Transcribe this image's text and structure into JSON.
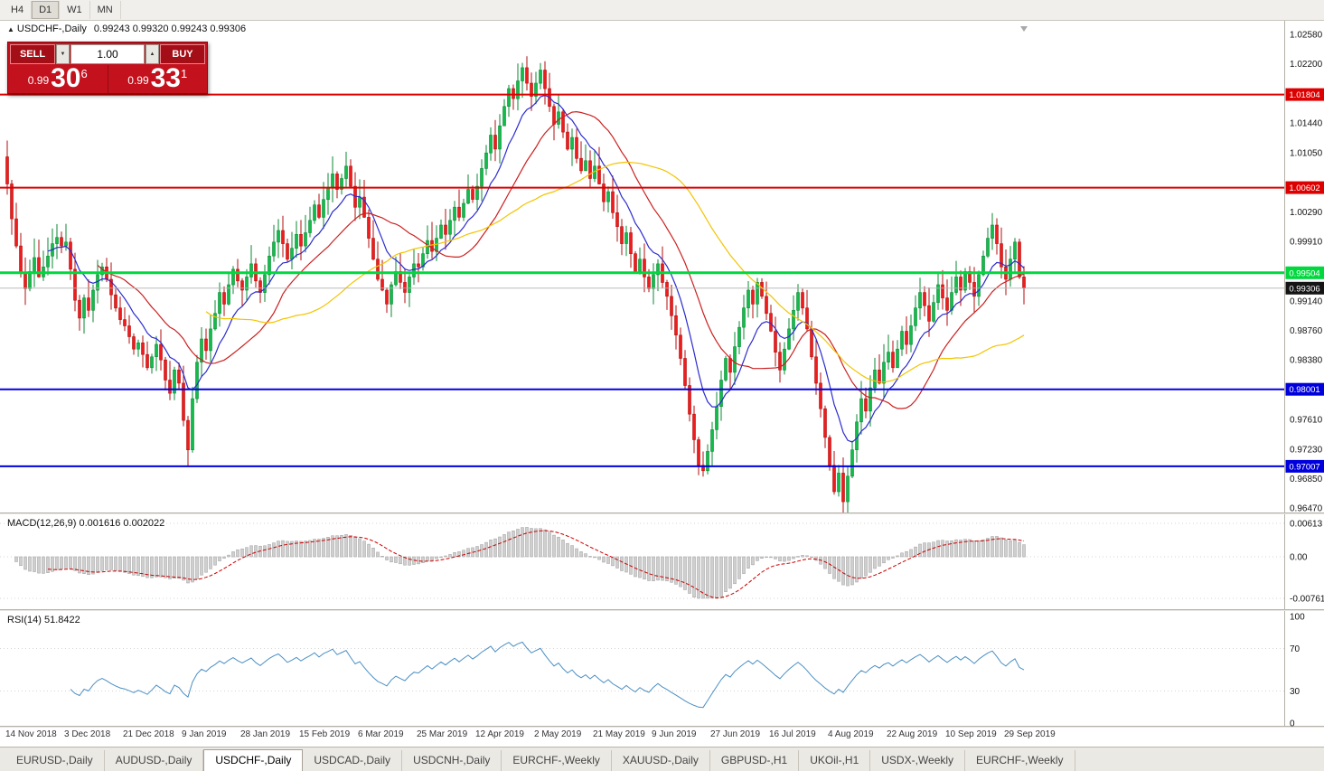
{
  "toolbar": {
    "timeframes": [
      {
        "label": "H4",
        "active": false
      },
      {
        "label": "D1",
        "active": true
      },
      {
        "label": "W1",
        "active": false
      },
      {
        "label": "MN",
        "active": false
      }
    ]
  },
  "chart": {
    "symbol_title": "USDCHF-,Daily",
    "ohlc_title": "0.99243 0.99320 0.99243 0.99306",
    "expand_icon": "▲",
    "trade_panel": {
      "sell_label": "SELL",
      "buy_label": "BUY",
      "volume": "1.00",
      "volume_down_icon": "▼",
      "volume_up_icon": "▲",
      "sell_price": {
        "prefix": "0.99",
        "big": "30",
        "sup": "6"
      },
      "buy_price": {
        "prefix": "0.99",
        "big": "33",
        "sup": "1"
      }
    },
    "axis": {
      "top": 1.0258,
      "bottom": 0.9647
    },
    "price_scale_labels": [
      "1.02580",
      "1.02200",
      "1.01440",
      "1.01050",
      "1.00290",
      "0.99910",
      "0.99140",
      "0.98760",
      "0.98380",
      "0.97610",
      "0.97230",
      "0.96850",
      "0.96470"
    ],
    "hlines": [
      {
        "price": 1.01804,
        "label": "1.01804",
        "color": "#dd0000",
        "width": 2
      },
      {
        "price": 1.00602,
        "label": "1.00602",
        "color": "#dd0000",
        "width": 2
      },
      {
        "price": 0.99504,
        "label": "0.99504",
        "color": "#00d83e",
        "width": 3
      },
      {
        "price": 0.98001,
        "label": "0.98001",
        "color": "#0000dd",
        "width": 2
      },
      {
        "price": 0.97007,
        "label": "0.97007",
        "color": "#0000dd",
        "width": 2
      }
    ],
    "current_price": {
      "label": "0.99306",
      "value": 0.99306,
      "badge_color": "#141414",
      "line_color": "#b0b0b0"
    },
    "colors": {
      "bull_fill": "#12bb4a",
      "bull_stroke": "#088a32",
      "bear_fill": "#ee1c1c",
      "bear_stroke": "#b30e0e",
      "ma_fast": "#2b2bd0",
      "ma_mid": "#cc2020",
      "ma_slow": "#f3c400",
      "macd_hist": "#cfcfcf",
      "macd_hist_stroke": "#9d9d9d",
      "macd_signal": "#cc0000",
      "rsi_line": "#4a8fc4"
    }
  },
  "chart_data": {
    "type": "candlestick",
    "title": "USDCHF-,Daily",
    "x_labels": [
      "14 Nov 2018",
      "3 Dec 2018",
      "21 Dec 2018",
      "9 Jan 2019",
      "28 Jan 2019",
      "15 Feb 2019",
      "6 Mar 2019",
      "25 Mar 2019",
      "12 Apr 2019",
      "2 May 2019",
      "21 May 2019",
      "9 Jun 2019",
      "27 Jun 2019",
      "16 Jul 2019",
      "4 Aug 2019",
      "22 Aug 2019",
      "10 Sep 2019",
      "29 Sep 2019"
    ],
    "x_label_step": 13,
    "y_range": [
      0.9647,
      1.0258
    ],
    "first_open": 1.01,
    "closes": [
      1.0065,
      1.002,
      0.9985,
      0.995,
      0.993,
      0.9952,
      0.997,
      0.9945,
      0.9958,
      0.9972,
      0.9988,
      0.9996,
      0.9985,
      0.999,
      0.9955,
      0.9915,
      0.9892,
      0.9918,
      0.9902,
      0.9928,
      0.9948,
      0.9958,
      0.9942,
      0.9922,
      0.9905,
      0.989,
      0.9882,
      0.9868,
      0.9852,
      0.986,
      0.9845,
      0.9828,
      0.9842,
      0.9858,
      0.9838,
      0.9812,
      0.9795,
      0.9825,
      0.9808,
      0.976,
      0.9722,
      0.9788,
      0.9835,
      0.9865,
      0.985,
      0.9878,
      0.9898,
      0.9925,
      0.991,
      0.9935,
      0.9955,
      0.994,
      0.9928,
      0.9945,
      0.9962,
      0.994,
      0.9925,
      0.9948,
      0.9972,
      0.999,
      1.0005,
      0.9988,
      0.9968,
      0.9982,
      1.0,
      0.9985,
      1.0002,
      1.0018,
      1.0038,
      1.0022,
      1.0045,
      1.006,
      1.0078,
      1.0058,
      1.0072,
      1.0088,
      1.0062,
      1.0035,
      1.0048,
      1.0022,
      0.9995,
      0.9968,
      0.9942,
      0.9928,
      0.991,
      0.9935,
      0.9952,
      0.9938,
      0.9925,
      0.9945,
      0.9962,
      0.9958,
      0.9975,
      0.9992,
      0.9978,
      0.9995,
      1.0012,
      1.0,
      1.0018,
      1.0035,
      1.0022,
      1.004,
      1.0058,
      1.0045,
      1.0062,
      1.0085,
      1.0105,
      1.0128,
      1.011,
      1.014,
      1.0165,
      1.0188,
      1.0175,
      1.0198,
      1.0215,
      1.0195,
      1.0178,
      1.0195,
      1.0212,
      1.0188,
      1.0165,
      1.0142,
      1.0158,
      1.0132,
      1.011,
      1.0125,
      1.0098,
      1.0082,
      1.0095,
      1.0072,
      1.0088,
      1.0065,
      1.0042,
      1.0055,
      1.0028,
      1.001,
      0.9988,
      1.0002,
      0.9975,
      0.9952,
      0.9968,
      0.9945,
      0.993,
      0.9948,
      0.9962,
      0.9938,
      0.992,
      0.9895,
      0.987,
      0.984,
      0.9805,
      0.9768,
      0.9735,
      0.9702,
      0.9695,
      0.972,
      0.9748,
      0.9778,
      0.9812,
      0.984,
      0.9822,
      0.9855,
      0.988,
      0.9905,
      0.9928,
      0.991,
      0.9938,
      0.992,
      0.9898,
      0.9875,
      0.9848,
      0.9825,
      0.9852,
      0.9878,
      0.9902,
      0.9925,
      0.9905,
      0.9878,
      0.9842,
      0.9808,
      0.9775,
      0.9738,
      0.9702,
      0.9668,
      0.9692,
      0.9655,
      0.9688,
      0.9722,
      0.9758,
      0.9788,
      0.9772,
      0.9802,
      0.9825,
      0.9808,
      0.9835,
      0.9848,
      0.9828,
      0.9852,
      0.9875,
      0.9858,
      0.9882,
      0.9905,
      0.9925,
      0.9908,
      0.9888,
      0.9912,
      0.9935,
      0.9918,
      0.9902,
      0.9925,
      0.9945,
      0.9928,
      0.9952,
      0.9938,
      0.992,
      0.9948,
      0.9972,
      0.9995,
      1.0012,
      0.9988,
      0.9958,
      0.9942,
      0.9968,
      0.999,
      0.9945,
      0.99306
    ],
    "moving_averages": [
      {
        "type": "ema",
        "period": 10,
        "color": "#2b2bd0"
      },
      {
        "type": "sma",
        "period": 21,
        "color": "#cc2020"
      },
      {
        "type": "sma",
        "period": 45,
        "color": "#f3c400"
      }
    ],
    "hlines": [
      1.01804,
      1.00602,
      0.99504,
      0.98001,
      0.97007
    ]
  },
  "macd_panel": {
    "title": "MACD(12,26,9) 0.001616 0.002022",
    "params": [
      12,
      26,
      9
    ],
    "scale_max": 0.00613,
    "scale_min": -0.00761,
    "scale_labels": [
      "0.00613",
      "0.00",
      "-0.00761"
    ]
  },
  "rsi_panel": {
    "title": "RSI(14) 51.8422",
    "period": 14,
    "levels": [
      70,
      30
    ],
    "scale_labels": [
      "100",
      "70",
      "30",
      "0"
    ]
  },
  "tabs": [
    {
      "label": "EURUSD-,Daily",
      "active": false
    },
    {
      "label": "AUDUSD-,Daily",
      "active": false
    },
    {
      "label": "USDCHF-,Daily",
      "active": true
    },
    {
      "label": "USDCAD-,Daily",
      "active": false
    },
    {
      "label": "USDCNH-,Daily",
      "active": false
    },
    {
      "label": "EURCHF-,Weekly",
      "active": false
    },
    {
      "label": "XAUUSD-,Daily",
      "active": false
    },
    {
      "label": "GBPUSD-,H1",
      "active": false
    },
    {
      "label": "UKOil-,H1",
      "active": false
    },
    {
      "label": "USDX-,Weekly",
      "active": false
    },
    {
      "label": "EURCHF-,Weekly",
      "active": false
    }
  ]
}
